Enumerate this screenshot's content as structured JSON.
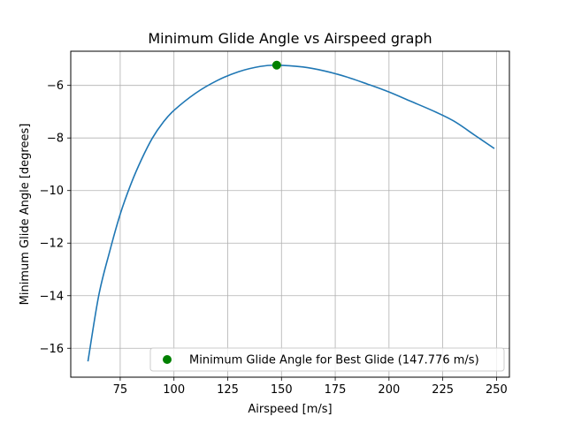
{
  "chart_data": {
    "type": "line",
    "title": "Minimum Glide Angle vs Airspeed graph",
    "xlabel": "Airspeed [m/s]",
    "ylabel": "Minimum Glide Angle [degrees]",
    "xlim": [
      52,
      256
    ],
    "ylim": [
      -17.1,
      -4.7
    ],
    "xticks": [
      75,
      100,
      125,
      150,
      175,
      200,
      225,
      250
    ],
    "yticks": [
      -16,
      -14,
      -12,
      -10,
      -8,
      -6
    ],
    "grid": true,
    "legend_position": "lower-right",
    "series": [
      {
        "color": "#1f77b4",
        "x": [
          60,
          65,
          70,
          75,
          80,
          85,
          90,
          95,
          100,
          110,
          120,
          130,
          140,
          147.776,
          160,
          170,
          180,
          190,
          200,
          210,
          220,
          230,
          240,
          249
        ],
        "y": [
          -16.5,
          -14.0,
          -12.35,
          -10.9,
          -9.75,
          -8.8,
          -8.0,
          -7.4,
          -6.95,
          -6.3,
          -5.82,
          -5.48,
          -5.28,
          -5.23,
          -5.3,
          -5.45,
          -5.67,
          -5.95,
          -6.25,
          -6.6,
          -6.95,
          -7.35,
          -7.9,
          -8.4
        ]
      },
      {
        "name": "Minimum Glide Angle for Best Glide (147.776 m/s)",
        "type": "point",
        "color": "#008000",
        "x": [
          147.776
        ],
        "y": [
          -5.23
        ]
      }
    ]
  }
}
